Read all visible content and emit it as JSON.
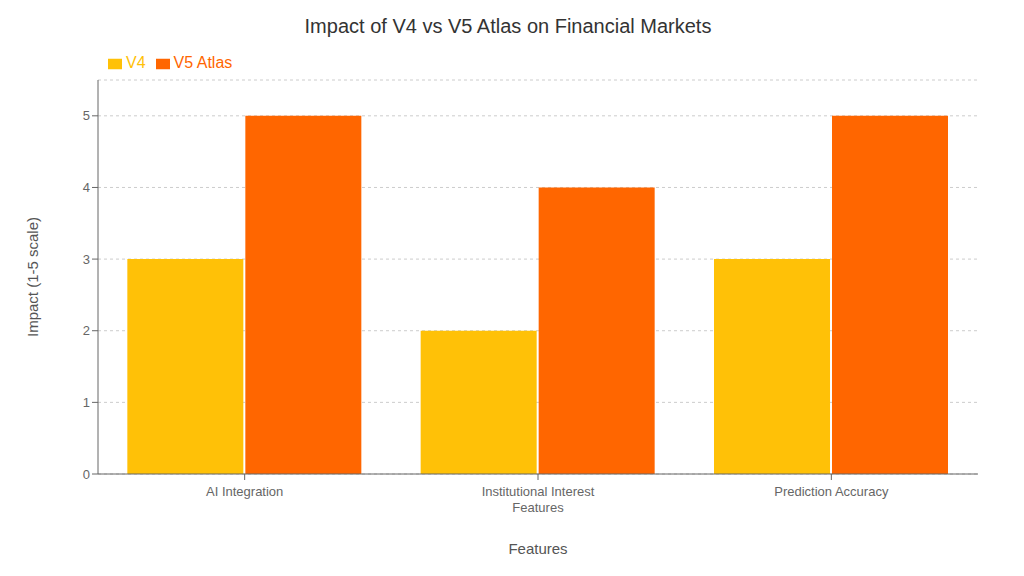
{
  "chart_data": {
    "type": "bar",
    "title": "Impact of V4 vs V5 Atlas on Financial Markets",
    "xlabel": "Features",
    "ylabel": "Impact (1-5 scale)",
    "categories": [
      "AI Integration",
      "Institutional Interest\nFeatures",
      "Prediction Accuracy"
    ],
    "series": [
      {
        "name": "V4",
        "color": "#FFC107",
        "values": [
          3,
          2,
          3
        ]
      },
      {
        "name": "V5 Atlas",
        "color": "#FF6600",
        "values": [
          5,
          4,
          5
        ]
      }
    ],
    "ylim": [
      0,
      5.5
    ],
    "yticks": [
      0,
      1,
      2,
      3,
      4,
      5
    ],
    "grid": true,
    "legend": "upper left"
  }
}
